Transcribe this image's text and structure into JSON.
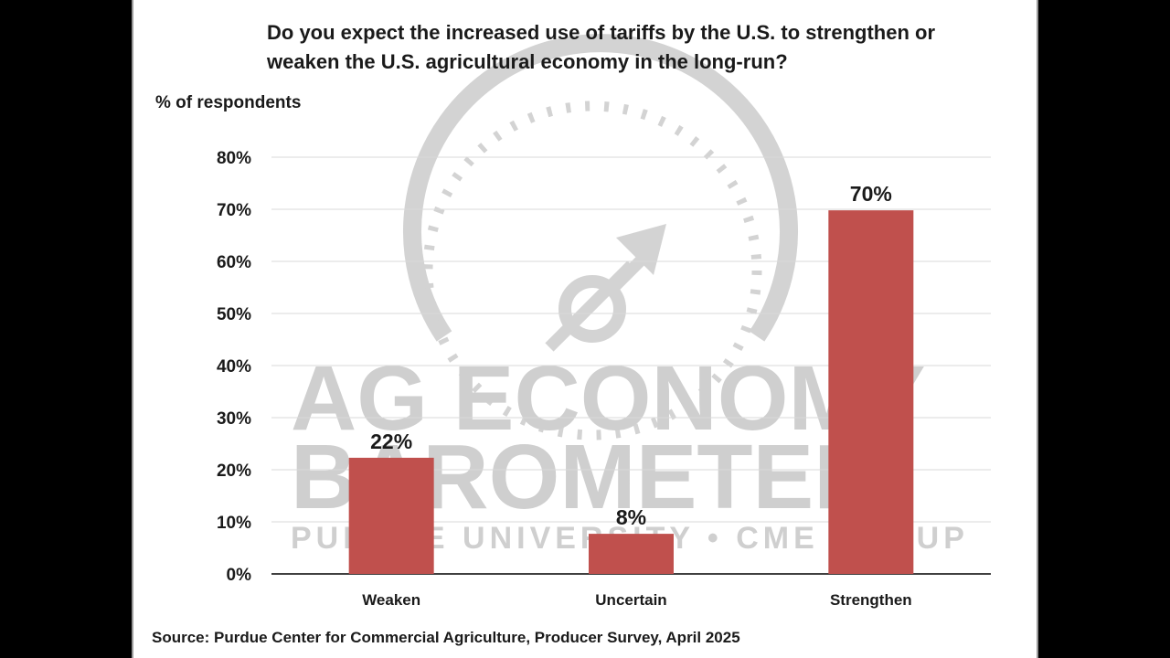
{
  "watermark": {
    "line1": "AG ECONOMY",
    "line2": "BAROMETER",
    "line3": "PURDUE UNIVERSITY • CME GROUP",
    "icon": "gauge-icon",
    "color": "#cfcfcf"
  },
  "colors": {
    "bar": "#c0504d",
    "grid": "#d9d9d9",
    "axis": "#000000"
  },
  "chart_data": {
    "type": "bar",
    "title": "Do you expect the increased use of tariffs by the U.S. to strengthen or weaken the U.S. agricultural economy in the long-run?",
    "ylabel": "% of respondents",
    "xlabel": "",
    "categories": [
      "Weaken",
      "Uncertain",
      "Strengthen"
    ],
    "values": [
      22.3,
      7.7,
      69.8
    ],
    "data_labels": [
      "22%",
      "8%",
      "70%"
    ],
    "ylim": [
      0,
      80
    ],
    "yticks": [
      0,
      10,
      20,
      30,
      40,
      50,
      60,
      70,
      80
    ],
    "ytick_labels": [
      "0%",
      "10%",
      "20%",
      "30%",
      "40%",
      "50%",
      "60%",
      "70%",
      "80%"
    ],
    "grid": true,
    "legend": "none",
    "source": "Source: Purdue Center for Commercial Agriculture, Producer Survey, April 2025"
  }
}
